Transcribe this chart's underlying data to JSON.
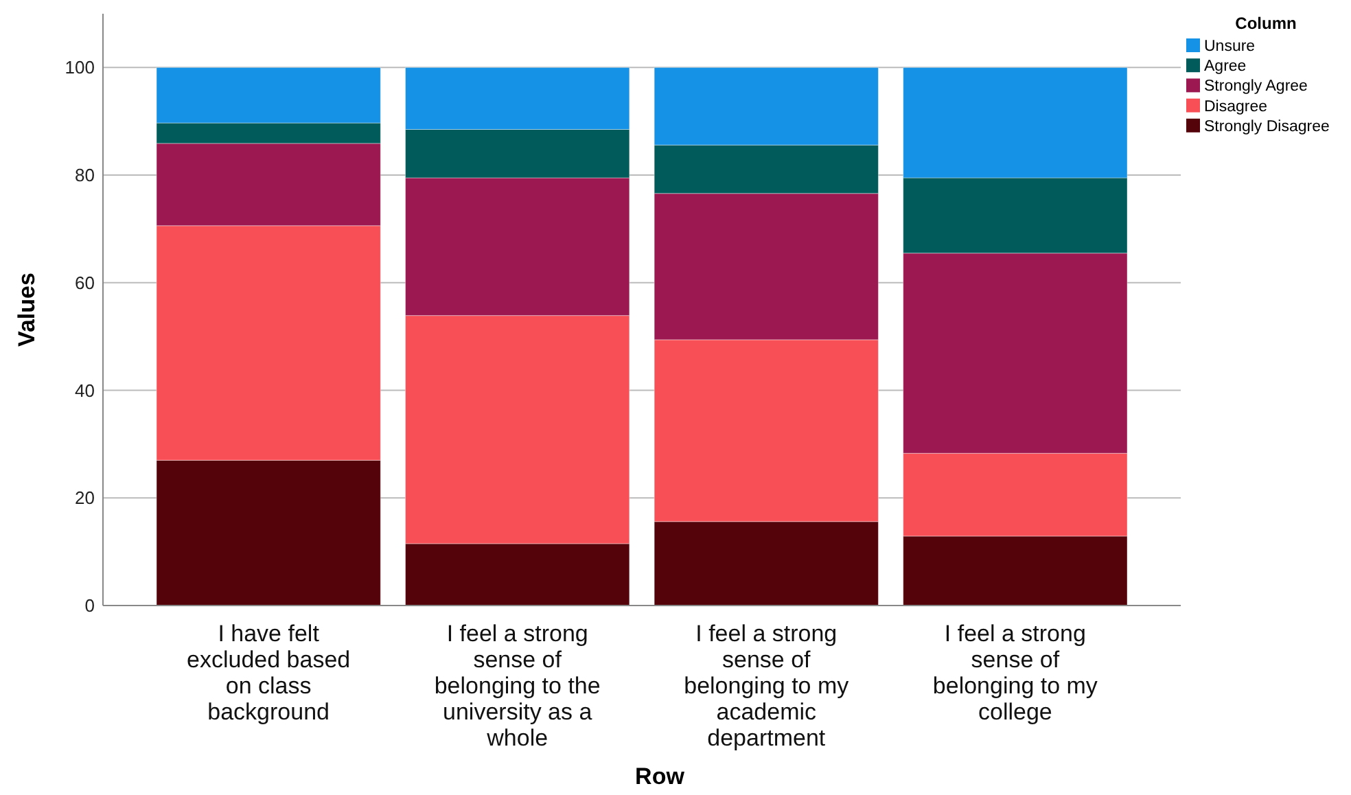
{
  "chart_data": {
    "type": "bar",
    "stacked": true,
    "xlabel": "Row",
    "ylabel": "Values",
    "legend_title": "Column",
    "legend": "top right",
    "grid": "y",
    "categories": [
      "I have felt excluded based on class background",
      "I feel a strong sense of belonging to the university as a whole",
      "I feel a strong sense of belonging to my academic department",
      "I feel a strong sense of belonging to my college"
    ],
    "ylim": [
      0,
      110
    ],
    "yticks": [
      0,
      20,
      40,
      60,
      80,
      100
    ],
    "series": [
      {
        "name": "Strongly Disagree",
        "color": "#55030a",
        "values": [
          27.0,
          11.5,
          15.6,
          12.9
        ]
      },
      {
        "name": "Disagree",
        "color": "#f84f57",
        "values": [
          43.6,
          42.4,
          33.8,
          15.4
        ]
      },
      {
        "name": "Strongly Agree",
        "color": "#9c1850",
        "values": [
          15.3,
          25.6,
          27.2,
          37.2
        ]
      },
      {
        "name": "Agree",
        "color": "#005b5a",
        "values": [
          3.8,
          9.0,
          9.0,
          14.0
        ]
      },
      {
        "name": "Unsure",
        "color": "#1591e5",
        "values": [
          10.3,
          11.5,
          14.4,
          20.5
        ]
      }
    ]
  }
}
